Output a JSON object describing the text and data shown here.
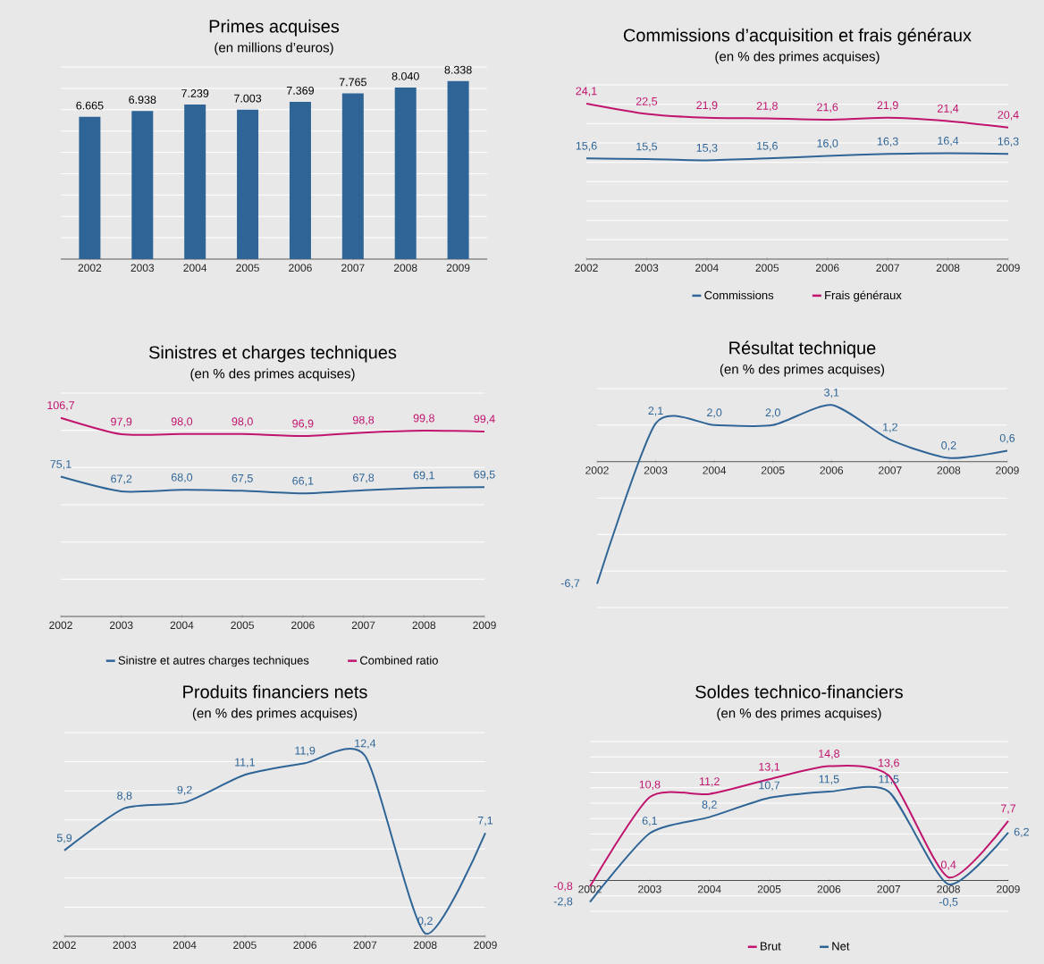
{
  "chart_data": [
    {
      "type": "bar",
      "title": "Primes acquises",
      "subtitle": "(en millions d’euros)",
      "categories": [
        "2002",
        "2003",
        "2004",
        "2005",
        "2006",
        "2007",
        "2008",
        "2009"
      ],
      "values": [
        6665,
        6938,
        7239,
        7003,
        7369,
        7765,
        8040,
        8338
      ],
      "color": "#2e6496",
      "value_labels": [
        "6.665",
        "6.938",
        "7.239",
        "7.003",
        "7.369",
        "7.765",
        "8.040",
        "8.338"
      ],
      "ylim": [
        0,
        9000
      ],
      "yticks": [
        {
          "value": 0,
          "label": null
        },
        {
          "value": 1000,
          "label": null
        },
        {
          "value": 2000,
          "label": null
        },
        {
          "value": 3000,
          "label": null
        },
        {
          "value": 4000,
          "label": null
        },
        {
          "value": 5000,
          "label": null
        },
        {
          "value": 6000,
          "label": null
        },
        {
          "value": 7000,
          "label": null
        },
        {
          "value": 8000,
          "label": null
        },
        {
          "value": 9000,
          "label": null
        }
      ],
      "grid": "y",
      "tick_labels": "x"
    },
    {
      "type": "line",
      "title": "Commissions d’acquisition et frais généraux",
      "subtitle": "(en % des primes acquises)",
      "categories": [
        "2002",
        "2003",
        "2004",
        "2005",
        "2006",
        "2007",
        "2008",
        "2009"
      ],
      "series": [
        {
          "name": "Commissions",
          "color": "#2e6496",
          "values": [
            15.6,
            15.5,
            15.3,
            15.6,
            16.0,
            16.3,
            16.4,
            16.3
          ],
          "value_labels": [
            "15,6",
            "15,5",
            "15,3",
            "15,6",
            "16,0",
            "16,3",
            "16,4",
            "16,3"
          ]
        },
        {
          "name": "Frais généraux",
          "color": "#c0146e",
          "values": [
            24.1,
            22.5,
            21.9,
            21.8,
            21.6,
            21.9,
            21.4,
            20.4
          ],
          "value_labels": [
            "24,1",
            "22,5",
            "21,9",
            "21,8",
            "21,6",
            "21,9",
            "21,4",
            "20,4"
          ]
        }
      ],
      "ylim": [
        0,
        27
      ],
      "yticks": [
        {
          "value": 0,
          "label": null
        },
        {
          "value": 3,
          "label": null
        },
        {
          "value": 6,
          "label": null
        },
        {
          "value": 9,
          "label": null
        },
        {
          "value": 12,
          "label": null
        },
        {
          "value": 15,
          "label": null
        },
        {
          "value": 18,
          "label": null
        },
        {
          "value": 21,
          "label": null
        },
        {
          "value": 24,
          "label": null
        },
        {
          "value": 27,
          "label": null
        }
      ],
      "grid": "y",
      "tick_labels": "x",
      "legend": "bottom"
    },
    {
      "type": "line",
      "title": "Sinistres et charges techniques",
      "subtitle": "(en % des primes acquises)",
      "categories": [
        "2002",
        "2003",
        "2004",
        "2005",
        "2006",
        "2007",
        "2008",
        "2009"
      ],
      "series": [
        {
          "name": "Sinistre et autres charges techniques",
          "color": "#2e6496",
          "values": [
            75.1,
            67.2,
            68.0,
            67.5,
            66.1,
            67.8,
            69.1,
            69.5
          ],
          "value_labels": [
            "75,1",
            "67,2",
            "68,0",
            "67,5",
            "66,1",
            "67,8",
            "69,1",
            "69,5"
          ]
        },
        {
          "name": "Combined ratio",
          "color": "#c0146e",
          "values": [
            106.7,
            97.9,
            98.0,
            98.0,
            96.9,
            98.8,
            99.8,
            99.4
          ],
          "value_labels": [
            "106,7",
            "97,9",
            "98,0",
            "98,0",
            "96,9",
            "98,8",
            "99,8",
            "99,4"
          ]
        }
      ],
      "ylim": [
        0,
        120
      ],
      "yticks": [
        {
          "value": 0,
          "label": null
        },
        {
          "value": 20,
          "label": null
        },
        {
          "value": 40,
          "label": null
        },
        {
          "value": 60,
          "label": null
        },
        {
          "value": 80,
          "label": null
        },
        {
          "value": 100,
          "label": null
        },
        {
          "value": 120,
          "label": null
        }
      ],
      "grid": "y",
      "tick_labels": "x",
      "legend": "bottom"
    },
    {
      "type": "line",
      "title": "Résultat technique",
      "subtitle": "(en % des primes acquises)",
      "categories": [
        "2002",
        "2003",
        "2004",
        "2005",
        "2006",
        "2007",
        "2008",
        "2009"
      ],
      "values": [
        -6.7,
        2.1,
        2.0,
        2.0,
        3.1,
        1.2,
        0.2,
        0.6
      ],
      "color": "#2e6496",
      "value_labels": [
        "-6,7",
        "2,1",
        "2,0",
        "2,0",
        "3,1",
        "1,2",
        "0,2",
        "0,6"
      ],
      "ylim": [
        -8,
        4
      ],
      "yticks": [
        {
          "value": -8,
          "label": null
        },
        {
          "value": -6,
          "label": null
        },
        {
          "value": -4,
          "label": null
        },
        {
          "value": -2,
          "label": null
        },
        {
          "value": 0,
          "label": null
        },
        {
          "value": 2,
          "label": null
        },
        {
          "value": 4,
          "label": null
        }
      ],
      "grid": "y",
      "tick_labels": "x"
    },
    {
      "type": "line",
      "title": "Produits financiers nets",
      "subtitle": "(en % des primes acquises)",
      "categories": [
        "2002",
        "2003",
        "2004",
        "2005",
        "2006",
        "2007",
        "2008",
        "2009"
      ],
      "values": [
        5.9,
        8.8,
        9.2,
        11.1,
        11.9,
        12.4,
        0.2,
        7.1
      ],
      "color": "#2e6496",
      "value_labels": [
        "5,9",
        "8,8",
        "9,2",
        "11,1",
        "11,9",
        "12,4",
        "0,2",
        "7,1"
      ],
      "ylim": [
        0,
        14
      ],
      "yticks": [
        {
          "value": 0,
          "label": null
        },
        {
          "value": 2,
          "label": null
        },
        {
          "value": 4,
          "label": null
        },
        {
          "value": 6,
          "label": null
        },
        {
          "value": 8,
          "label": null
        },
        {
          "value": 10,
          "label": null
        },
        {
          "value": 12,
          "label": null
        },
        {
          "value": 14,
          "label": null
        }
      ],
      "grid": "y",
      "tick_labels": "x"
    },
    {
      "type": "line",
      "title": "Soldes technico-financiers",
      "subtitle": "(en % des primes acquises)",
      "categories": [
        "2002",
        "2003",
        "2004",
        "2005",
        "2006",
        "2007",
        "2008",
        "2009"
      ],
      "series": [
        {
          "name": "Brut",
          "color": "#c0146e",
          "values": [
            -0.8,
            10.8,
            11.2,
            13.1,
            14.8,
            13.6,
            0.4,
            7.7
          ],
          "value_labels": [
            "-0,8",
            "10,8",
            "11,2",
            "13,1",
            "14,8",
            "13,6",
            "0,4",
            "7,7"
          ]
        },
        {
          "name": "Net",
          "color": "#2e6496",
          "values": [
            -2.8,
            6.1,
            8.2,
            10.7,
            11.5,
            11.5,
            -0.5,
            6.2
          ],
          "value_labels": [
            "-2,8",
            "6,1",
            "8,2",
            "10,7",
            "11,5",
            "11,5",
            "-0,5",
            "6,2"
          ]
        }
      ],
      "ylim": [
        -4,
        18
      ],
      "yticks": [
        {
          "value": -4,
          "label": null
        },
        {
          "value": -2,
          "label": null
        },
        {
          "value": 0,
          "label": null
        },
        {
          "value": 2,
          "label": null
        },
        {
          "value": 4,
          "label": null
        },
        {
          "value": 6,
          "label": null
        },
        {
          "value": 8,
          "label": null
        },
        {
          "value": 10,
          "label": null
        },
        {
          "value": 12,
          "label": null
        },
        {
          "value": 14,
          "label": null
        },
        {
          "value": 16,
          "label": null
        },
        {
          "value": 18,
          "label": null
        }
      ],
      "grid": "y",
      "tick_labels": "x",
      "legend": "bottom"
    }
  ]
}
